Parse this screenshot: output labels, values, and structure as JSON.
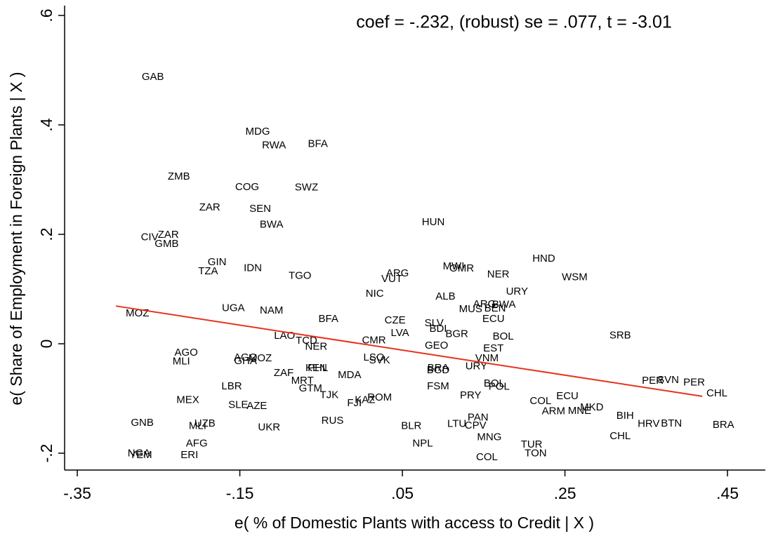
{
  "chart_data": {
    "type": "scatter",
    "annotation": "coef = -.232, (robust) se = .077, t = -3.01",
    "x_label": "e( % of Domestic Plants with access to Credit | X )",
    "y_label": "e( Share of Employment in Foreign Plants | X )",
    "xlim": [
      -0.3656,
      0.4966
    ],
    "ylim": [
      -0.2308,
      0.618
    ],
    "xticks": [
      {
        "value": -0.35,
        "label": "-.35"
      },
      {
        "value": -0.15,
        "label": "-.15"
      },
      {
        "value": 0.05,
        "label": ".05"
      },
      {
        "value": 0.25,
        "label": ".25"
      },
      {
        "value": 0.45,
        "label": ".45"
      }
    ],
    "yticks": [
      {
        "value": -0.2,
        "label": "-.2"
      },
      0,
      {
        "value": 0.2,
        "label": ".2"
      },
      {
        "value": 0.4,
        "label": ".4"
      },
      {
        "value": 0.6,
        "label": ".6"
      }
    ],
    "labels": [
      "GAB",
      "MDG",
      "RWA",
      "BFA",
      "ZMB",
      "COG",
      "SWZ",
      "ZAR",
      "SEN",
      "BWA",
      "HUN",
      "CIV",
      "ZAR",
      "GMB",
      "GIN",
      "TZA",
      "IDN",
      "TGO",
      "HND",
      "WSM",
      "MWI",
      "OMR",
      "ARG",
      "VUT",
      "NER",
      "URY",
      "NIC",
      "ALB",
      "ARG",
      "BWA",
      "MUS",
      "BEN",
      "ECU",
      "UGA",
      "NAM",
      "MOZ",
      "BFA",
      "CZE",
      "SLV",
      "BDI",
      "LVA",
      "BGR",
      "BOL",
      "SRB",
      "LAO",
      "TCD",
      "CMR",
      "GEO",
      "EST",
      "NER",
      "AGO",
      "MLI",
      "AGO",
      "GHA",
      "MOZ",
      "LSO",
      "SVK",
      "VNM",
      "BRA",
      "BGD",
      "URY",
      "ZAF",
      "KEN",
      "PHL",
      "MDA",
      "MRT",
      "GTM",
      "TJK",
      "LBR",
      "BOL",
      "POL",
      "FSM",
      "PRY",
      "ECU",
      "PER",
      "SVN",
      "PER",
      "CHL",
      "COL",
      "MEX",
      "SLE",
      "AZE",
      "ROM",
      "FJI",
      "KAZ",
      "ARM",
      "MNE",
      "MKD",
      "BIH",
      "HRV",
      "BTN",
      "BRA",
      "PAN",
      "CPV",
      "LTU",
      "RUS",
      "BLR",
      "UKR",
      "GNB",
      "MLI",
      "UZB",
      "CHL",
      "MNG",
      "AFG",
      "NPL",
      "TUR",
      "TON",
      "NGA",
      "YEM",
      "ERI",
      "COL"
    ],
    "x": [
      -0.257,
      -0.128,
      -0.108,
      -0.054,
      -0.225,
      -0.141,
      -0.068,
      -0.187,
      -0.125,
      -0.111,
      0.088,
      -0.261,
      -0.238,
      -0.24,
      -0.178,
      -0.189,
      -0.134,
      -0.076,
      0.224,
      0.262,
      0.113,
      0.123,
      0.044,
      0.037,
      0.168,
      0.191,
      0.016,
      0.103,
      0.151,
      0.175,
      0.134,
      0.164,
      0.162,
      -0.158,
      -0.111,
      -0.276,
      -0.041,
      0.041,
      0.089,
      0.094,
      0.047,
      0.117,
      0.174,
      0.318,
      -0.095,
      -0.068,
      0.015,
      0.092,
      0.162,
      -0.056,
      -0.216,
      -0.222,
      -0.143,
      -0.143,
      -0.125,
      0.015,
      0.022,
      0.154,
      0.094,
      0.094,
      0.141,
      -0.096,
      -0.056,
      -0.054,
      -0.015,
      -0.073,
      -0.063,
      -0.04,
      -0.16,
      0.163,
      0.169,
      0.094,
      0.134,
      0.253,
      0.358,
      0.377,
      0.409,
      0.437,
      0.22,
      -0.214,
      -0.152,
      -0.129,
      0.022,
      -0.009,
      0.004,
      0.236,
      0.268,
      0.283,
      0.324,
      0.353,
      0.381,
      0.445,
      0.143,
      0.14,
      0.117,
      -0.036,
      0.061,
      -0.114,
      -0.27,
      -0.202,
      -0.193,
      0.318,
      0.157,
      -0.203,
      0.075,
      0.209,
      0.214,
      -0.274,
      -0.272,
      -0.212,
      0.154
    ],
    "values": [
      0.487,
      0.387,
      0.362,
      0.365,
      0.305,
      0.286,
      0.285,
      0.249,
      0.246,
      0.217,
      0.222,
      0.194,
      0.199,
      0.182,
      0.149,
      0.132,
      0.138,
      0.124,
      0.155,
      0.121,
      0.141,
      0.137,
      0.128,
      0.118,
      0.126,
      0.095,
      0.091,
      0.086,
      0.072,
      0.071,
      0.063,
      0.064,
      0.045,
      0.065,
      0.06,
      0.055,
      0.045,
      0.042,
      0.037,
      0.027,
      0.019,
      0.017,
      0.013,
      0.015,
      0.014,
      0.005,
      0.006,
      -0.004,
      -0.009,
      -0.006,
      -0.017,
      -0.033,
      -0.026,
      -0.032,
      -0.027,
      -0.026,
      -0.031,
      -0.027,
      -0.045,
      -0.049,
      -0.042,
      -0.054,
      -0.045,
      -0.045,
      -0.058,
      -0.068,
      -0.082,
      -0.094,
      -0.078,
      -0.073,
      -0.079,
      -0.078,
      -0.095,
      -0.096,
      -0.068,
      -0.067,
      -0.071,
      -0.091,
      -0.105,
      -0.103,
      -0.112,
      -0.114,
      -0.099,
      -0.109,
      -0.103,
      -0.124,
      -0.123,
      -0.117,
      -0.132,
      -0.147,
      -0.146,
      -0.149,
      -0.135,
      -0.15,
      -0.147,
      -0.141,
      -0.151,
      -0.153,
      -0.145,
      -0.151,
      -0.146,
      -0.169,
      -0.171,
      -0.183,
      -0.183,
      -0.185,
      -0.201,
      -0.201,
      -0.204,
      -0.204,
      -0.208
    ],
    "fit": {
      "x": [
        -0.3025,
        0.4189
      ],
      "y": [
        0.069,
        -0.096
      ],
      "color": "#e8321e"
    }
  }
}
